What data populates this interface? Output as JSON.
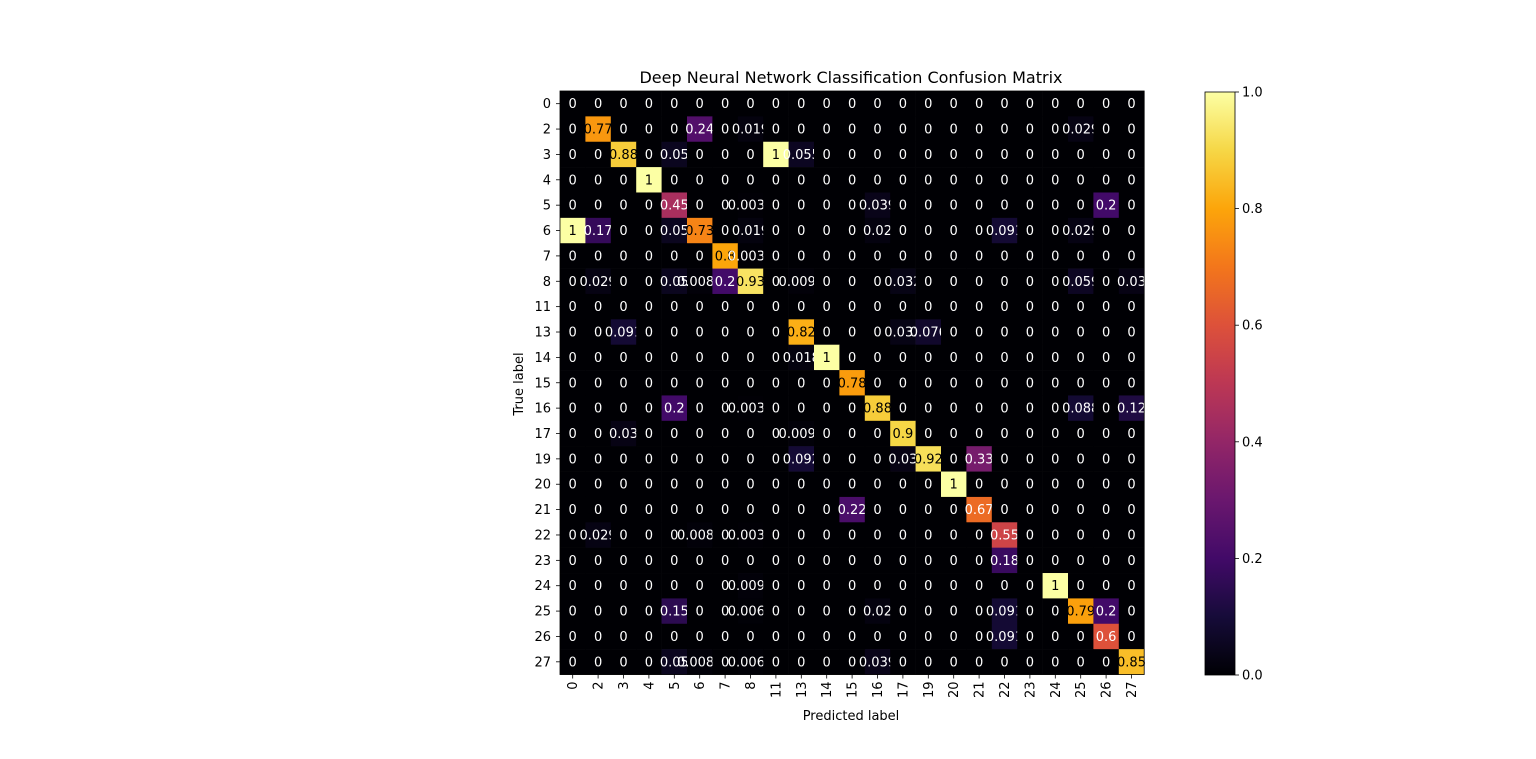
{
  "chart_data": {
    "type": "heatmap",
    "title": "Deep Neural Network Classification Confusion Matrix",
    "xlabel": "Predicted label",
    "ylabel": "True label",
    "x_labels": [
      "0",
      "2",
      "3",
      "4",
      "5",
      "6",
      "7",
      "8",
      "11",
      "13",
      "14",
      "15",
      "16",
      "17",
      "19",
      "20",
      "21",
      "22",
      "23",
      "24",
      "25",
      "26",
      "27"
    ],
    "y_labels": [
      "0",
      "2",
      "3",
      "4",
      "5",
      "6",
      "7",
      "8",
      "11",
      "13",
      "14",
      "15",
      "16",
      "17",
      "19",
      "20",
      "21",
      "22",
      "23",
      "24",
      "25",
      "26",
      "27"
    ],
    "colormap": "inferno",
    "colorbar": {
      "range": [
        0,
        1
      ],
      "ticks": [
        "0.0",
        "0.2",
        "0.4",
        "0.6",
        "0.8",
        "1.0"
      ]
    },
    "values": [
      [
        0,
        0,
        0,
        0,
        0,
        0,
        0,
        0,
        0,
        0,
        0,
        0,
        0,
        0,
        0,
        0,
        0,
        0,
        0,
        0,
        0,
        0,
        0
      ],
      [
        0,
        0.77,
        0,
        0,
        0,
        0.24,
        0,
        0.019,
        0,
        0,
        0,
        0,
        0,
        0,
        0,
        0,
        0,
        0,
        0,
        0,
        0.029,
        0,
        0
      ],
      [
        0,
        0,
        0.88,
        0,
        0.05,
        0,
        0,
        0,
        1,
        0.055,
        0,
        0,
        0,
        0,
        0,
        0,
        0,
        0,
        0,
        0,
        0,
        0,
        0
      ],
      [
        0,
        0,
        0,
        1,
        0,
        0,
        0,
        0,
        0,
        0,
        0,
        0,
        0,
        0,
        0,
        0,
        0,
        0,
        0,
        0,
        0,
        0,
        0
      ],
      [
        0,
        0,
        0,
        0,
        0.45,
        0,
        0,
        0.0032,
        0,
        0,
        0,
        0,
        0.039,
        0,
        0,
        0,
        0,
        0,
        0,
        0,
        0,
        0.2,
        0
      ],
      [
        1,
        0.17,
        0,
        0,
        0.05,
        0.73,
        0,
        0.019,
        0,
        0,
        0,
        0,
        0.02,
        0,
        0,
        0,
        0,
        0.091,
        0,
        0,
        0.029,
        0,
        0
      ],
      [
        0,
        0,
        0,
        0,
        0,
        0,
        0.8,
        0.0032,
        0,
        0,
        0,
        0,
        0,
        0,
        0,
        0,
        0,
        0,
        0,
        0,
        0,
        0,
        0
      ],
      [
        0,
        0.029,
        0,
        0,
        0.05,
        0.0088,
        0.2,
        0.93,
        0,
        0.0092,
        0,
        0,
        0,
        0.032,
        0,
        0,
        0,
        0,
        0,
        0,
        0.059,
        0,
        0.03
      ],
      [
        0,
        0,
        0,
        0,
        0,
        0,
        0,
        0,
        0,
        0,
        0,
        0,
        0,
        0,
        0,
        0,
        0,
        0,
        0,
        0,
        0,
        0,
        0
      ],
      [
        0,
        0,
        0.091,
        0,
        0,
        0,
        0,
        0,
        0,
        0.82,
        0,
        0,
        0,
        0.032,
        0.076,
        0,
        0,
        0,
        0,
        0,
        0,
        0,
        0
      ],
      [
        0,
        0,
        0,
        0,
        0,
        0,
        0,
        0,
        0,
        0.018,
        1,
        0,
        0,
        0,
        0,
        0,
        0,
        0,
        0,
        0,
        0,
        0,
        0
      ],
      [
        0,
        0,
        0,
        0,
        0,
        0,
        0,
        0,
        0,
        0,
        0,
        0.78,
        0,
        0,
        0,
        0,
        0,
        0,
        0,
        0,
        0,
        0,
        0
      ],
      [
        0,
        0,
        0,
        0,
        0.2,
        0,
        0,
        0.0032,
        0,
        0,
        0,
        0,
        0.88,
        0,
        0,
        0,
        0,
        0,
        0,
        0,
        0.088,
        0,
        0.12
      ],
      [
        0,
        0,
        0.03,
        0,
        0,
        0,
        0,
        0,
        0,
        0.0092,
        0,
        0,
        0,
        0.9,
        0,
        0,
        0,
        0,
        0,
        0,
        0,
        0,
        0
      ],
      [
        0,
        0,
        0,
        0,
        0,
        0,
        0,
        0,
        0,
        0.092,
        0,
        0,
        0,
        0.03,
        0.92,
        0,
        0.33,
        0,
        0,
        0,
        0,
        0,
        0
      ],
      [
        0,
        0,
        0,
        0,
        0,
        0,
        0,
        0,
        0,
        0,
        0,
        0,
        0,
        0,
        0,
        1,
        0,
        0,
        0,
        0,
        0,
        0,
        0
      ],
      [
        0,
        0,
        0,
        0,
        0,
        0,
        0,
        0,
        0,
        0,
        0,
        0.22,
        0,
        0,
        0,
        0,
        0.67,
        0,
        0,
        0,
        0,
        0,
        0
      ],
      [
        0,
        0.029,
        0,
        0,
        0,
        0.0088,
        0,
        0.0032,
        0,
        0,
        0,
        0,
        0,
        0,
        0,
        0,
        0,
        0.55,
        0,
        0,
        0,
        0,
        0
      ],
      [
        0,
        0,
        0,
        0,
        0,
        0,
        0,
        0,
        0,
        0,
        0,
        0,
        0,
        0,
        0,
        0,
        0,
        0.18,
        0,
        0,
        0,
        0,
        0
      ],
      [
        0,
        0,
        0,
        0,
        0,
        0,
        0,
        0.0095,
        0,
        0,
        0,
        0,
        0,
        0,
        0,
        0,
        0,
        0,
        0,
        1,
        0,
        0,
        0
      ],
      [
        0,
        0,
        0,
        0,
        0.15,
        0,
        0,
        0.0063,
        0,
        0,
        0,
        0,
        0.02,
        0,
        0,
        0,
        0,
        0.091,
        0,
        0,
        0.79,
        0.2,
        0
      ],
      [
        0,
        0,
        0,
        0,
        0,
        0,
        0,
        0,
        0,
        0,
        0,
        0,
        0,
        0,
        0,
        0,
        0,
        0.091,
        0,
        0,
        0,
        0.6,
        0
      ],
      [
        0,
        0,
        0,
        0,
        0.05,
        0.0088,
        0,
        0.0063,
        0,
        0,
        0,
        0,
        0.039,
        0,
        0,
        0,
        0,
        0,
        0,
        0,
        0,
        0,
        0.85
      ]
    ]
  }
}
